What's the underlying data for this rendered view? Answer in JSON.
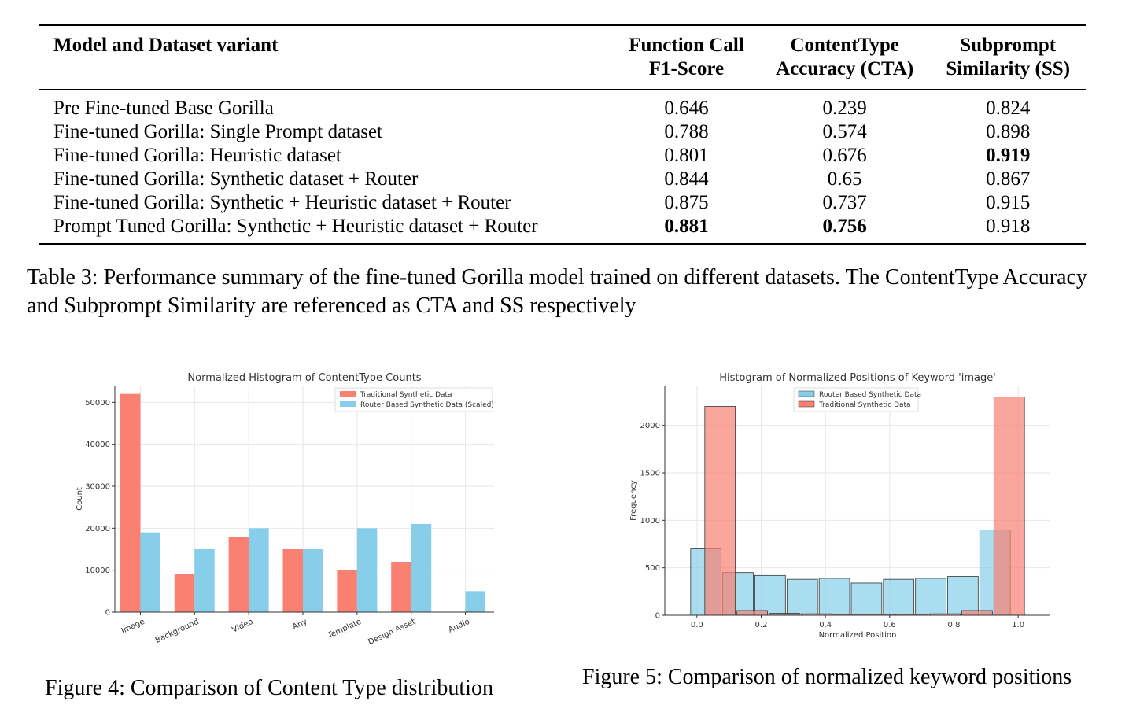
{
  "table": {
    "headers": [
      [
        "Model and Dataset variant"
      ],
      [
        "Function Call",
        "F1-Score"
      ],
      [
        "ContentType",
        "Accuracy (CTA)"
      ],
      [
        "Subprompt",
        "Similarity (SS)"
      ]
    ],
    "rows": [
      {
        "cells": [
          "Pre Fine-tuned Base Gorilla",
          "0.646",
          "0.239",
          "0.824"
        ],
        "bold": []
      },
      {
        "cells": [
          "Fine-tuned Gorilla: Single Prompt dataset",
          "0.788",
          "0.574",
          "0.898"
        ],
        "bold": []
      },
      {
        "cells": [
          "Fine-tuned Gorilla: Heuristic dataset",
          "0.801",
          "0.676",
          "0.919"
        ],
        "bold": [
          3
        ]
      },
      {
        "cells": [
          "Fine-tuned Gorilla: Synthetic dataset + Router",
          "0.844",
          "0.65",
          "0.867"
        ],
        "bold": []
      },
      {
        "cells": [
          "Fine-tuned Gorilla: Synthetic + Heuristic dataset + Router",
          "0.875",
          "0.737",
          "0.915"
        ],
        "bold": []
      },
      {
        "cells": [
          "Prompt Tuned Gorilla: Synthetic + Heuristic dataset + Router",
          "0.881",
          "0.756",
          "0.918"
        ],
        "bold": [
          1,
          2
        ]
      }
    ],
    "caption": "Table 3: Performance summary of the fine-tuned Gorilla model trained on different datasets. The ContentType Accuracy and Subprompt Similarity are referenced as CTA and SS respectively"
  },
  "figures": {
    "fig4_caption": "Figure 4: Comparison of Content Type distribution",
    "fig5_caption": "Figure 5: Comparison of normalized keyword positions"
  },
  "colors": {
    "traditional": "#fa8072",
    "router": "#87ceeb"
  },
  "chart_data": [
    {
      "type": "bar",
      "title": "Normalized Histogram of ContentType Counts",
      "xlabel": "",
      "ylabel": "Count",
      "categories": [
        "Image",
        "Background",
        "Video",
        "Any",
        "Template",
        "Design Asset",
        "Audio"
      ],
      "series": [
        {
          "name": "Traditional Synthetic Data",
          "values": [
            52000,
            9000,
            18000,
            15000,
            10000,
            12000,
            0
          ]
        },
        {
          "name": "Router Based Synthetic Data (Scaled)",
          "values": [
            19000,
            15000,
            20000,
            15000,
            20000,
            21000,
            5000
          ]
        }
      ],
      "ylim": [
        0,
        54000
      ],
      "yticks": [
        0,
        10000,
        20000,
        30000,
        40000,
        50000
      ],
      "grid": true,
      "legend": "top-right"
    },
    {
      "type": "bar",
      "title": "Histogram of Normalized Positions of Keyword 'image'",
      "xlabel": "Normalized Position",
      "ylabel": "Frequency",
      "bin_edges": [
        0,
        0.1,
        0.2,
        0.3,
        0.4,
        0.5,
        0.6,
        0.7,
        0.8,
        0.9,
        1.0
      ],
      "series": [
        {
          "name": "Router Based Synthetic Data",
          "values": [
            700,
            450,
            420,
            380,
            390,
            340,
            380,
            390,
            410,
            900
          ]
        },
        {
          "name": "Traditional Synthetic Data",
          "values": [
            2200,
            50,
            20,
            15,
            10,
            10,
            10,
            15,
            50,
            2300
          ]
        }
      ],
      "xlim": [
        -0.1,
        1.1
      ],
      "ylim": [
        0,
        2420
      ],
      "xticks": [
        "0.0",
        "0.2",
        "0.4",
        "0.6",
        "0.8",
        "1.0"
      ],
      "yticks": [
        0,
        500,
        1000,
        1500,
        2000
      ],
      "grid": true,
      "legend": "top-center"
    }
  ]
}
